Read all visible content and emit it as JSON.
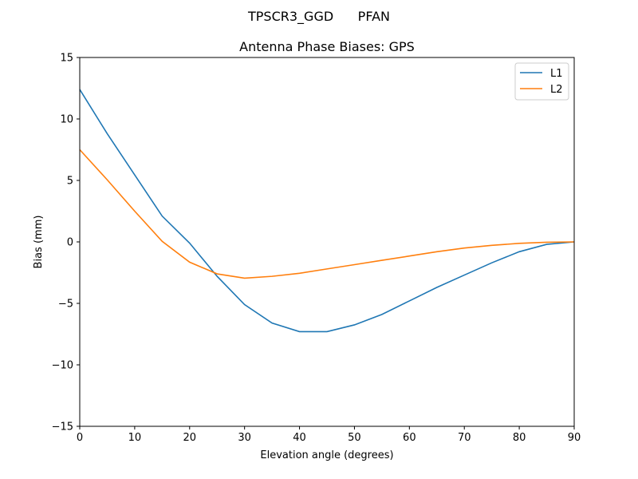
{
  "chart_data": {
    "type": "line",
    "suptitle": "TPSCR3_GGD      PFAN",
    "title": "Antenna Phase Biases: GPS",
    "xlabel": "Elevation angle (degrees)",
    "ylabel": "Bias (mm)",
    "xlim": [
      0,
      90
    ],
    "ylim": [
      -15,
      15
    ],
    "xticks": [
      0,
      10,
      20,
      30,
      40,
      50,
      60,
      70,
      80,
      90
    ],
    "yticks": [
      -15,
      -10,
      -5,
      0,
      5,
      10,
      15
    ],
    "ytick_labels": [
      "−15",
      "−10",
      "−5",
      "0",
      "5",
      "10",
      "15"
    ],
    "grid": false,
    "legend_placement": "top-right",
    "x": [
      0,
      5,
      10,
      15,
      20,
      25,
      30,
      35,
      40,
      45,
      50,
      55,
      60,
      65,
      70,
      75,
      80,
      85,
      90
    ],
    "series": [
      {
        "name": "L1",
        "color": "#1f77b4",
        "values": [
          12.4,
          8.8,
          5.45,
          2.1,
          -0.1,
          -2.8,
          -5.1,
          -6.6,
          -7.3,
          -7.3,
          -6.75,
          -5.9,
          -4.8,
          -3.7,
          -2.7,
          -1.7,
          -0.8,
          -0.2,
          0.0
        ]
      },
      {
        "name": "L2",
        "color": "#ff7f0e",
        "values": [
          7.5,
          5.05,
          2.5,
          0.05,
          -1.65,
          -2.6,
          -2.95,
          -2.8,
          -2.55,
          -2.2,
          -1.85,
          -1.5,
          -1.15,
          -0.8,
          -0.5,
          -0.28,
          -0.12,
          -0.03,
          0.0
        ]
      }
    ]
  }
}
